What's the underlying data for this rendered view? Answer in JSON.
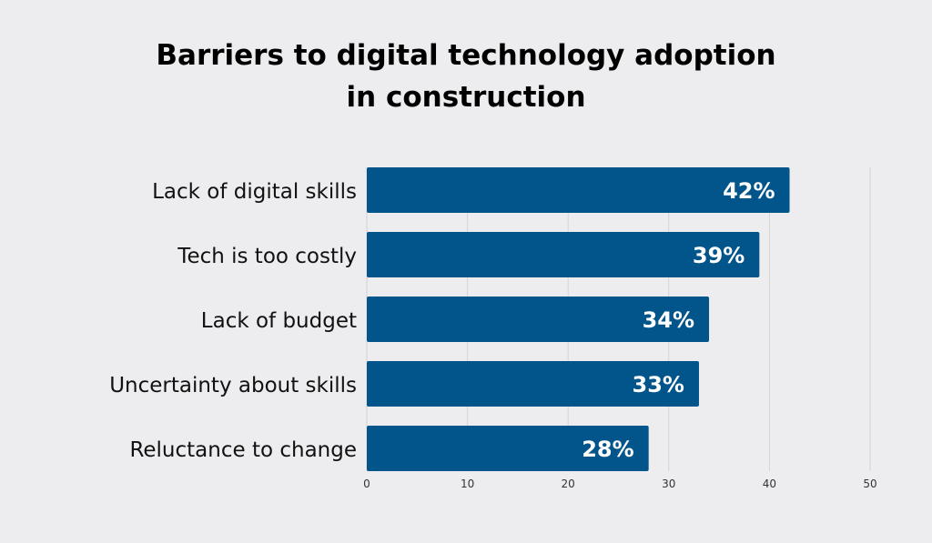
{
  "chart_data": {
    "type": "bar",
    "orientation": "horizontal",
    "title": "Barriers to digital technology adoption in construction",
    "title_lines": [
      "Barriers to digital technology adoption",
      "in construction"
    ],
    "categories": [
      "Lack of digital skills",
      "Tech is too costly",
      "Lack of budget",
      "Uncertainty about skills",
      "Reluctance to change"
    ],
    "values": [
      42,
      39,
      34,
      33,
      28
    ],
    "data_labels": [
      "42%",
      "39%",
      "34%",
      "33%",
      "28%"
    ],
    "xlim": [
      0,
      50
    ],
    "xticks": [
      0,
      10,
      20,
      30,
      40,
      50
    ],
    "grid": true,
    "bar_color": "#02558b",
    "xlabel": "",
    "ylabel": ""
  }
}
